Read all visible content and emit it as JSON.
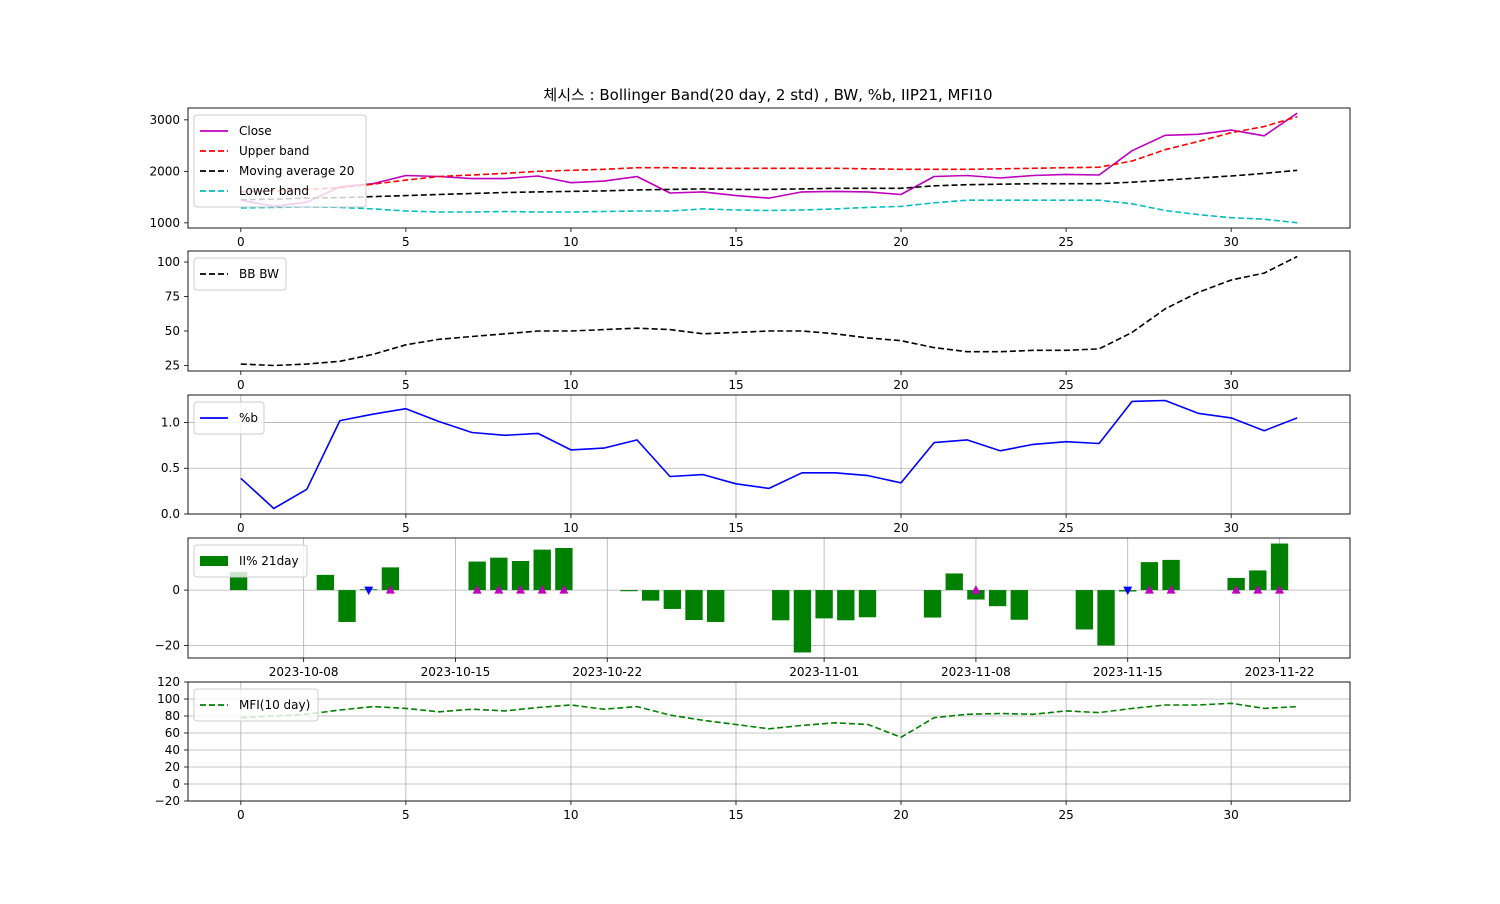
{
  "figure": {
    "title": "체시스 : Bollinger Band(20 day, 2 std) , BW, %b, IIP21, MFI10"
  },
  "colors": {
    "close": "#bf00bf",
    "upper": "#ff0000",
    "ma": "#000000",
    "lower": "#00bfbf",
    "bw": "#000000",
    "pb": "#0000ff",
    "bars": "#008000",
    "mfi": "#008000",
    "buy_marker": "#bf00bf",
    "sell_marker": "#0000ff",
    "grid": "#b0b0b0"
  },
  "chart_data": [
    {
      "type": "line",
      "x": [
        0,
        1,
        2,
        3,
        4,
        5,
        6,
        7,
        8,
        9,
        10,
        11,
        12,
        13,
        14,
        15,
        16,
        17,
        18,
        19,
        20,
        21,
        22,
        23,
        24,
        25,
        26,
        27,
        28,
        29,
        30,
        31,
        32
      ],
      "series": [
        {
          "name": "Close",
          "style": "solid",
          "values": [
            1440,
            1320,
            1400,
            1700,
            1760,
            1920,
            1900,
            1860,
            1860,
            1910,
            1780,
            1810,
            1900,
            1580,
            1600,
            1530,
            1480,
            1600,
            1610,
            1600,
            1550,
            1900,
            1920,
            1870,
            1920,
            1940,
            1930,
            2400,
            2700,
            2720,
            2800,
            2690,
            3130
          ]
        },
        {
          "name": "Upper band",
          "style": "dashed",
          "values": [
            1600,
            1620,
            1650,
            1680,
            1750,
            1830,
            1900,
            1930,
            1960,
            2000,
            2020,
            2040,
            2070,
            2070,
            2060,
            2060,
            2060,
            2060,
            2060,
            2050,
            2040,
            2040,
            2040,
            2050,
            2060,
            2070,
            2080,
            2200,
            2420,
            2580,
            2750,
            2870,
            3060
          ]
        },
        {
          "name": "Moving average 20",
          "style": "dashed",
          "values": [
            1450,
            1460,
            1480,
            1490,
            1510,
            1530,
            1550,
            1570,
            1590,
            1600,
            1610,
            1620,
            1640,
            1650,
            1660,
            1650,
            1650,
            1660,
            1670,
            1670,
            1670,
            1720,
            1740,
            1750,
            1760,
            1760,
            1760,
            1790,
            1830,
            1870,
            1910,
            1960,
            2020
          ]
        },
        {
          "name": "Lower band",
          "style": "dashed",
          "values": [
            1290,
            1300,
            1310,
            1300,
            1270,
            1230,
            1210,
            1210,
            1220,
            1210,
            1210,
            1220,
            1230,
            1230,
            1270,
            1250,
            1240,
            1250,
            1270,
            1300,
            1320,
            1390,
            1440,
            1440,
            1440,
            1440,
            1440,
            1370,
            1240,
            1160,
            1100,
            1070,
            1000
          ]
        }
      ],
      "xticks": [
        0,
        5,
        10,
        15,
        20,
        25,
        30
      ],
      "yticks": [
        1000,
        2000,
        3000
      ],
      "xlim": [
        -1.6,
        33.6
      ],
      "ylim": [
        900,
        3230
      ],
      "grid": false,
      "legend": "upper-left"
    },
    {
      "type": "line",
      "x": [
        0,
        1,
        2,
        3,
        4,
        5,
        6,
        7,
        8,
        9,
        10,
        11,
        12,
        13,
        14,
        15,
        16,
        17,
        18,
        19,
        20,
        21,
        22,
        23,
        24,
        25,
        26,
        27,
        28,
        29,
        30,
        31,
        32
      ],
      "series": [
        {
          "name": "BB BW",
          "style": "dashed",
          "values": [
            26,
            25,
            26,
            28,
            33,
            40,
            44,
            46,
            48,
            50,
            50,
            51,
            52,
            51,
            48,
            49,
            50,
            50,
            48,
            45,
            43,
            38,
            35,
            35,
            36,
            36,
            37,
            49,
            66,
            78,
            87,
            92,
            104
          ]
        }
      ],
      "xticks": [
        0,
        5,
        10,
        15,
        20,
        25,
        30
      ],
      "yticks": [
        25,
        50,
        75,
        100
      ],
      "xlim": [
        -1.6,
        33.6
      ],
      "ylim": [
        21,
        108
      ],
      "grid": false,
      "legend": "upper-left"
    },
    {
      "type": "line",
      "x": [
        0,
        1,
        2,
        3,
        4,
        5,
        6,
        7,
        8,
        9,
        10,
        11,
        12,
        13,
        14,
        15,
        16,
        17,
        18,
        19,
        20,
        21,
        22,
        23,
        24,
        25,
        26,
        27,
        28,
        29,
        30,
        31,
        32
      ],
      "series": [
        {
          "name": "%b",
          "style": "solid",
          "values": [
            0.39,
            0.06,
            0.27,
            1.02,
            1.09,
            1.15,
            1.01,
            0.89,
            0.86,
            0.88,
            0.7,
            0.72,
            0.81,
            0.41,
            0.43,
            0.33,
            0.28,
            0.45,
            0.45,
            0.42,
            0.34,
            0.78,
            0.81,
            0.69,
            0.76,
            0.79,
            0.77,
            1.23,
            1.24,
            1.1,
            1.05,
            0.91,
            1.05
          ]
        }
      ],
      "xticks": [
        0,
        5,
        10,
        15,
        20,
        25,
        30
      ],
      "yticks": [
        0.0,
        0.5,
        1.0
      ],
      "ytick_labels": [
        "0.0",
        "0.5",
        "1.0"
      ],
      "xlim": [
        -1.6,
        33.6
      ],
      "ylim": [
        0.0,
        1.3
      ],
      "grid": true,
      "legend": "upper-left"
    },
    {
      "type": "bar",
      "x": [
        "2023-10-05",
        "2023-10-09",
        "2023-10-10",
        "2023-10-11",
        "2023-10-12",
        "2023-10-16",
        "2023-10-17",
        "2023-10-18",
        "2023-10-19",
        "2023-10-20",
        "2023-10-23",
        "2023-10-24",
        "2023-10-25",
        "2023-10-26",
        "2023-10-27",
        "2023-10-30",
        "2023-10-31",
        "2023-11-01",
        "2023-11-02",
        "2023-11-03",
        "2023-11-06",
        "2023-11-07",
        "2023-11-08",
        "2023-11-09",
        "2023-11-10",
        "2023-11-13",
        "2023-11-14",
        "2023-11-15",
        "2023-11-16",
        "2023-11-17",
        "2023-11-20",
        "2023-11-21",
        "2023-11-22"
      ],
      "series": [
        {
          "name": "II% 21day",
          "values": [
            6.5,
            5.5,
            -11.5,
            0.3,
            8.2,
            10.3,
            11.7,
            10.5,
            14.6,
            15.2,
            -0.4,
            -3.8,
            -6.8,
            -10.8,
            -11.5,
            -10.9,
            -22.5,
            -10.2,
            -10.9,
            -9.8,
            -9.9,
            6.0,
            -3.4,
            -5.8,
            -10.7,
            -14.2,
            -20.0,
            -0.5,
            10.1,
            10.9,
            4.4,
            7.1,
            16.8
          ]
        }
      ],
      "markers": {
        "buy": [
          "2023-10-12",
          "2023-10-16",
          "2023-10-17",
          "2023-10-18",
          "2023-10-19",
          "2023-10-20",
          "2023-11-08",
          "2023-11-16",
          "2023-11-17",
          "2023-11-20",
          "2023-11-21",
          "2023-11-22"
        ],
        "sell": [
          "2023-10-11",
          "2023-11-15"
        ]
      },
      "xticks": [
        "2023-10-08",
        "2023-10-15",
        "2023-10-22",
        "2023-11-01",
        "2023-11-08",
        "2023-11-15",
        "2023-11-22"
      ],
      "yticks": [
        -20,
        0
      ],
      "ytick_labels": [
        "−20",
        "0"
      ],
      "xlim_dates": [
        "2023-10-02T16:00",
        "2023-11-25T06:00"
      ],
      "ylim": [
        -24.5,
        18.8
      ],
      "grid": true,
      "legend": "upper-left"
    },
    {
      "type": "line",
      "x": [
        0,
        1,
        2,
        3,
        4,
        5,
        6,
        7,
        8,
        9,
        10,
        11,
        12,
        13,
        14,
        15,
        16,
        17,
        18,
        19,
        20,
        21,
        22,
        23,
        24,
        25,
        26,
        27,
        28,
        29,
        30,
        31,
        32
      ],
      "series": [
        {
          "name": "MFI(10 day)",
          "style": "dashed",
          "values": [
            78,
            80,
            82,
            87,
            91,
            89,
            85,
            88,
            86,
            90,
            93,
            88,
            91,
            81,
            75,
            70,
            65,
            69,
            72,
            70,
            55,
            78,
            82,
            83,
            82,
            86,
            84,
            89,
            93,
            93,
            95,
            89,
            91
          ]
        }
      ],
      "xticks": [
        0,
        5,
        10,
        15,
        20,
        25,
        30
      ],
      "yticks": [
        -20,
        0,
        20,
        40,
        60,
        80,
        100,
        120
      ],
      "ytick_labels": [
        "−20",
        "0",
        "20",
        "40",
        "60",
        "80",
        "100",
        "120"
      ],
      "xlim": [
        -1.6,
        33.6
      ],
      "ylim": [
        -20,
        120
      ],
      "grid": true,
      "legend": "upper-left"
    }
  ]
}
